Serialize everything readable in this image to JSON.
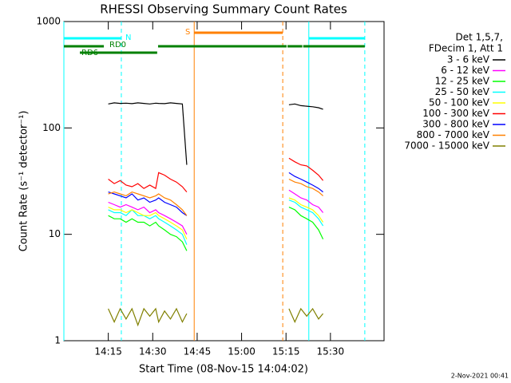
{
  "chart_data": {
    "type": "line",
    "title": "RHESSI Observing Summary Count Rates",
    "xlabel": "Start Time (08-Nov-15 14:04:02)",
    "ylabel": "Count Rate (s⁻¹ detector⁻¹)",
    "footer": "2-Nov-2021 00:41",
    "legend_title": [
      "Det 1,5,7,",
      "FDecim 1, Att 1"
    ],
    "log_y": true,
    "xlim": [
      0,
      108.1
    ],
    "ylim": [
      1,
      1000
    ],
    "yticks": [
      1,
      10,
      100,
      1000
    ],
    "xticks": [
      {
        "value": 15,
        "label": "14:15"
      },
      {
        "value": 30,
        "label": "14:30"
      },
      {
        "value": 45,
        "label": "14:45"
      },
      {
        "value": 60,
        "label": "15:00"
      },
      {
        "value": 75,
        "label": "15:15"
      },
      {
        "value": 90,
        "label": "15:30"
      }
    ],
    "x": [
      15,
      17,
      19,
      21,
      23,
      25,
      27,
      29,
      31,
      32,
      34,
      36,
      38,
      40,
      41.5,
      60,
      76,
      78,
      80,
      82,
      84,
      86,
      87.5
    ],
    "series": [
      {
        "name": "3 - 6 keV",
        "color": "#000000",
        "values": [
          168,
          172,
          170,
          171,
          169,
          172,
          170,
          168,
          171,
          170,
          169,
          172,
          170,
          168,
          45,
          null,
          165,
          168,
          162,
          160,
          158,
          155,
          150
        ]
      },
      {
        "name": "6 - 12 keV",
        "color": "#ff00ff",
        "values": [
          20,
          19,
          18,
          19,
          18,
          17,
          18,
          16,
          17,
          16,
          15,
          14,
          13,
          12,
          10,
          null,
          26,
          24,
          22,
          21,
          19,
          18,
          16
        ]
      },
      {
        "name": "12 - 25 keV",
        "color": "#00ff00",
        "values": [
          15,
          14,
          14,
          13,
          14,
          13,
          13,
          12,
          13,
          12,
          11,
          10,
          9.5,
          8.5,
          7,
          null,
          18,
          17,
          15,
          14,
          13,
          11,
          9
        ]
      },
      {
        "name": "25 - 50 keV",
        "color": "#00ffff",
        "values": [
          17,
          16,
          16,
          15,
          17,
          15,
          15,
          14,
          15,
          14,
          13,
          12,
          11,
          10,
          8,
          null,
          21,
          20,
          18,
          17,
          16,
          14,
          12
        ]
      },
      {
        "name": "50 - 100 keV",
        "color": "#ffff00",
        "values": [
          18,
          17,
          17,
          16,
          17,
          16,
          15,
          15,
          16,
          15,
          14,
          13,
          12,
          11,
          9,
          null,
          22,
          21,
          19,
          18,
          17,
          15,
          13
        ]
      },
      {
        "name": "100 - 300 keV",
        "color": "#ff0000",
        "values": [
          33,
          30,
          32,
          29,
          28,
          30,
          27,
          29,
          27,
          38,
          36,
          33,
          31,
          28,
          25,
          null,
          52,
          48,
          45,
          44,
          40,
          36,
          32
        ]
      },
      {
        "name": "300 - 800 keV",
        "color": "#0000ff",
        "values": [
          25,
          24,
          23,
          22,
          24,
          21,
          22,
          20,
          21,
          22,
          20,
          19,
          18,
          16,
          15,
          null,
          38,
          35,
          33,
          31,
          29,
          27,
          25
        ]
      },
      {
        "name": "800 - 7000 keV",
        "color": "#ff8000",
        "values": [
          24,
          25,
          24,
          23,
          25,
          24,
          23,
          22,
          23,
          24,
          22,
          21,
          19,
          17,
          15,
          null,
          33,
          31,
          30,
          28,
          27,
          25,
          23
        ]
      },
      {
        "name": "7000 - 15000 keV",
        "color": "#808000",
        "values": [
          2,
          1.5,
          2,
          1.6,
          2,
          1.4,
          2,
          1.7,
          2,
          1.5,
          1.9,
          1.6,
          2,
          1.5,
          1.8,
          null,
          2,
          1.5,
          2,
          1.7,
          2,
          1.6,
          1.8
        ]
      }
    ],
    "bands": [
      {
        "label": "N",
        "color": "#00ffff",
        "intervals": [
          [
            0,
            19.4
          ],
          [
            82.7,
            101.6
          ]
        ]
      },
      {
        "label": "S",
        "color": "#ff8000",
        "intervals": [
          [
            44,
            73.9
          ]
        ]
      },
      {
        "label": "RD0",
        "color": "#008000",
        "intervals": [
          [
            0,
            13.5
          ],
          [
            31.8,
            75.2
          ],
          [
            75.5,
            80.5
          ],
          [
            80.8,
            101.6
          ]
        ]
      },
      {
        "label": "RD6",
        "color": "#008000",
        "intervals": [
          [
            5.4,
            31.5
          ]
        ]
      }
    ],
    "events": [
      {
        "x": 0,
        "color": "#00ffff",
        "dashed": false
      },
      {
        "x": 19.4,
        "color": "#00ffff",
        "dashed": true
      },
      {
        "x": 44,
        "color": "#ff8000",
        "dashed": false
      },
      {
        "x": 73.9,
        "color": "#ff8000",
        "dashed": true
      },
      {
        "x": 82.7,
        "color": "#00ffff",
        "dashed": false
      },
      {
        "x": 101.6,
        "color": "#00ffff",
        "dashed": true
      }
    ]
  }
}
